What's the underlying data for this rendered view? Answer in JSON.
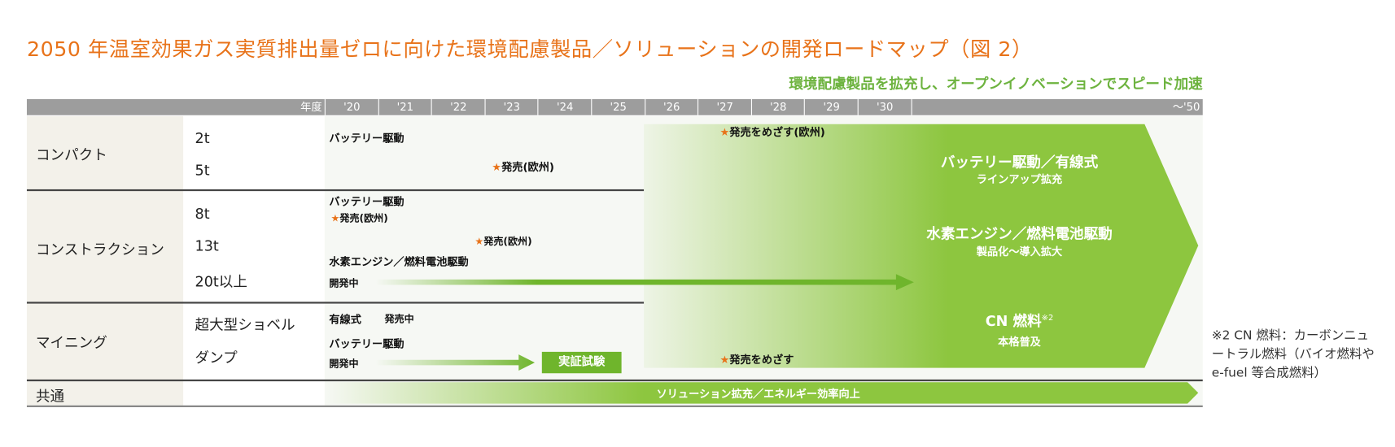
{
  "title": "2050 年温室効果ガス実質排出量ゼロに向けた環境配慮製品／ソリューションの開発ロードマップ（図 2）",
  "subtitle": "環境配慮製品を拡充し、オープンイノベーションでスピード加速",
  "header": {
    "year_label": "年度",
    "years": [
      "'20",
      "'21",
      "'22",
      "'23",
      "'24",
      "'25",
      "'26",
      "'27",
      "'28",
      "'29",
      "'30"
    ],
    "end_year": "～'50"
  },
  "colors": {
    "title": "#e8731a",
    "green": "#8dc63f",
    "subtitle": "#6db33f",
    "header": "#9d9d9d",
    "star": "#e8731a"
  },
  "rows": {
    "compact": {
      "label": "コンパクト",
      "subs": [
        "2t",
        "5t"
      ],
      "battery": "バッテリー駆動",
      "launch_eu": "発売(欧州)",
      "target_eu": "発売をめざす(欧州)"
    },
    "construction": {
      "label": "コンストラクション",
      "subs": [
        "8t",
        "13t",
        "20t以上"
      ],
      "battery": "バッテリー駆動",
      "launch_eu_1": "発売(欧州)",
      "launch_eu_2": "発売(欧州)",
      "hydrogen": "水素エンジン／燃料電池駆動",
      "developing": "開発中"
    },
    "mining": {
      "label": "マイニング",
      "subs": [
        "超大型ショベル",
        "ダンプ"
      ],
      "wired": "有線式",
      "on_sale": "発売中",
      "battery": "バッテリー駆動",
      "developing": "開発中",
      "trial": "実証試験",
      "target": "発売をめざす"
    },
    "common": {
      "label": "共通",
      "bar": "ソリューション拡充／エネルギー効率向上"
    }
  },
  "big_arrow": {
    "l1": "バッテリー駆動／有線式",
    "l1s": "ラインアップ拡充",
    "l2": "水素エンジン／燃料電池駆動",
    "l2s": "製品化～導入拡大",
    "l3": "CN 燃料",
    "l3sup": "※2",
    "l3s": "本格普及"
  },
  "star_icon": "star-icon",
  "footnote": "※2 CN 燃料：カーボンニュートラル燃料（バイオ燃料や e-fuel 等合成燃料）"
}
